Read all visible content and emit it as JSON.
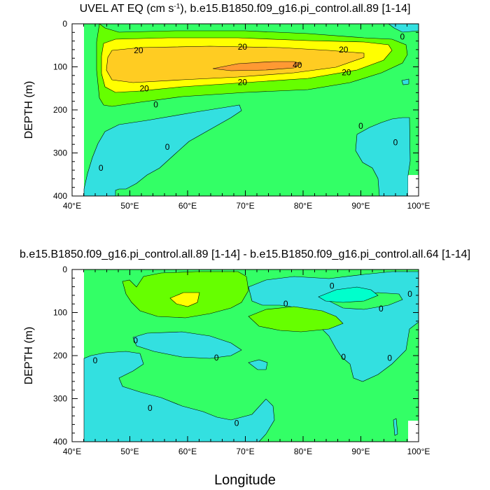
{
  "colors": {
    "aqua": "#00ffcc",
    "cyan": "#33e0e0",
    "light_green": "#33ff66",
    "green": "#66ff00",
    "yellow": "#ffff00",
    "gold": "#ffcc22",
    "orange": "#ff9933",
    "line": "#000000"
  },
  "chart_data": [
    {
      "type": "contour",
      "title_main": "UVEL AT EQ (cm s",
      "title_sup": "-1",
      "title_rest": "), b.e15.B1850.f09_g16.pi_control.all.89 [1-14]",
      "ylabel": "DEPTH (m)",
      "xlabel": "",
      "xlim": [
        40,
        100
      ],
      "ylim": [
        400,
        0
      ],
      "x_ticks": [
        {
          "value": 40,
          "label": "40°E"
        },
        {
          "value": 50,
          "label": "50°E"
        },
        {
          "value": 60,
          "label": "60°E"
        },
        {
          "value": 70,
          "label": "70°E"
        },
        {
          "value": 80,
          "label": "80°E"
        },
        {
          "value": 90,
          "label": "90°E"
        },
        {
          "value": 100,
          "label": "100°E"
        }
      ],
      "y_ticks": [
        {
          "value": 0,
          "label": "0"
        },
        {
          "value": 100,
          "label": "100"
        },
        {
          "value": 200,
          "label": "200"
        },
        {
          "value": 300,
          "label": "300"
        },
        {
          "value": 400,
          "label": "400"
        }
      ],
      "contour_levels": [
        -20,
        -10,
        0,
        10,
        20,
        30,
        40
      ],
      "contour_labels": [
        {
          "text": "20",
          "lon": 51.5,
          "depth": 62
        },
        {
          "text": "20",
          "lon": 69.5,
          "depth": 54
        },
        {
          "text": "20",
          "lon": 87,
          "depth": 60
        },
        {
          "text": "40",
          "lon": 79,
          "depth": 96
        },
        {
          "text": "20",
          "lon": 87.5,
          "depth": 113
        },
        {
          "text": "20",
          "lon": 69.5,
          "depth": 136
        },
        {
          "text": "20",
          "lon": 52.5,
          "depth": 150
        },
        {
          "text": "0",
          "lon": 54.5,
          "depth": 188
        },
        {
          "text": "0",
          "lon": 56.5,
          "depth": 286
        },
        {
          "text": "0",
          "lon": 45,
          "depth": 335
        },
        {
          "text": "0",
          "lon": 97.2,
          "depth": 30
        },
        {
          "text": "0",
          "lon": 90,
          "depth": 237
        },
        {
          "text": "0",
          "lon": 96,
          "depth": 276
        }
      ]
    },
    {
      "type": "contour",
      "title_main": "b.e15.B1850.f09_g16.pi_control.all.89 [1-14] - b.e15.B1850.f09_g16.pi_control.all.64 [1-14]",
      "ylabel": "DEPTH (m)",
      "xlabel": "Longitude",
      "xlim": [
        40,
        100
      ],
      "ylim": [
        400,
        0
      ],
      "x_ticks": [
        {
          "value": 40,
          "label": "40°E"
        },
        {
          "value": 50,
          "label": "50°E"
        },
        {
          "value": 60,
          "label": "60°E"
        },
        {
          "value": 70,
          "label": "70°E"
        },
        {
          "value": 80,
          "label": "80°E"
        },
        {
          "value": 90,
          "label": "90°E"
        },
        {
          "value": 100,
          "label": "100°E"
        }
      ],
      "y_ticks": [
        {
          "value": 0,
          "label": "0"
        },
        {
          "value": 100,
          "label": "100"
        },
        {
          "value": 200,
          "label": "200"
        },
        {
          "value": 300,
          "label": "300"
        },
        {
          "value": 400,
          "label": "400"
        }
      ],
      "contour_labels": [
        {
          "text": "0",
          "lon": 85,
          "depth": 38
        },
        {
          "text": "0",
          "lon": 98.5,
          "depth": 57
        },
        {
          "text": "0",
          "lon": 77,
          "depth": 80
        },
        {
          "text": "0",
          "lon": 93.5,
          "depth": 91
        },
        {
          "text": "0",
          "lon": 51,
          "depth": 165
        },
        {
          "text": "0",
          "lon": 44,
          "depth": 211
        },
        {
          "text": "0",
          "lon": 65,
          "depth": 205
        },
        {
          "text": "0",
          "lon": 87,
          "depth": 203
        },
        {
          "text": "0",
          "lon": 95,
          "depth": 206
        },
        {
          "text": "0",
          "lon": 53.5,
          "depth": 322
        },
        {
          "text": "0",
          "lon": 68.5,
          "depth": 357
        }
      ]
    }
  ]
}
